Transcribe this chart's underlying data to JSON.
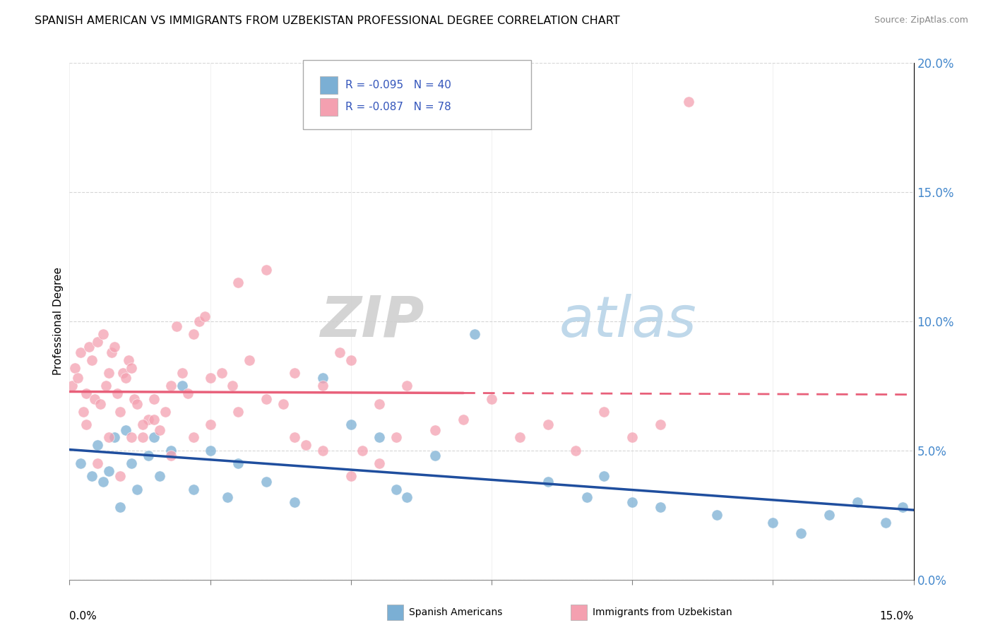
{
  "title": "SPANISH AMERICAN VS IMMIGRANTS FROM UZBEKISTAN PROFESSIONAL DEGREE CORRELATION CHART",
  "source": "Source: ZipAtlas.com",
  "ylabel": "Professional Degree",
  "legend_blue_r": "R = -0.095",
  "legend_blue_n": "N = 40",
  "legend_pink_r": "R = -0.087",
  "legend_pink_n": "N = 78",
  "legend_blue_label": "Spanish Americans",
  "legend_pink_label": "Immigrants from Uzbekistan",
  "xlim": [
    0.0,
    15.0
  ],
  "ylim": [
    0.0,
    20.0
  ],
  "yticks": [
    0.0,
    5.0,
    10.0,
    15.0,
    20.0
  ],
  "blue_color": "#7BAFD4",
  "pink_color": "#F4A0B0",
  "blue_line_color": "#1F4E9E",
  "pink_line_color": "#E8607A",
  "blue_scatter_x": [
    0.2,
    0.4,
    0.5,
    0.6,
    0.7,
    0.8,
    0.9,
    1.0,
    1.1,
    1.2,
    1.4,
    1.5,
    1.6,
    1.8,
    2.0,
    2.2,
    2.5,
    2.8,
    3.0,
    3.5,
    4.0,
    4.5,
    5.0,
    5.5,
    5.8,
    6.0,
    6.5,
    7.2,
    8.5,
    9.2,
    9.5,
    10.0,
    10.5,
    11.5,
    12.5,
    13.0,
    13.5,
    14.0,
    14.5,
    14.8
  ],
  "blue_scatter_y": [
    4.5,
    4.0,
    5.2,
    3.8,
    4.2,
    5.5,
    2.8,
    5.8,
    4.5,
    3.5,
    4.8,
    5.5,
    4.0,
    5.0,
    7.5,
    3.5,
    5.0,
    3.2,
    4.5,
    3.8,
    3.0,
    7.8,
    6.0,
    5.5,
    3.5,
    3.2,
    4.8,
    9.5,
    3.8,
    3.2,
    4.0,
    3.0,
    2.8,
    2.5,
    2.2,
    1.8,
    2.5,
    3.0,
    2.2,
    2.8
  ],
  "pink_scatter_x": [
    0.05,
    0.1,
    0.15,
    0.2,
    0.25,
    0.3,
    0.35,
    0.4,
    0.45,
    0.5,
    0.55,
    0.6,
    0.65,
    0.7,
    0.75,
    0.8,
    0.85,
    0.9,
    0.95,
    1.0,
    1.05,
    1.1,
    1.15,
    1.2,
    1.3,
    1.4,
    1.5,
    1.6,
    1.7,
    1.8,
    1.9,
    2.0,
    2.1,
    2.2,
    2.3,
    2.4,
    2.5,
    2.7,
    2.9,
    3.0,
    3.2,
    3.5,
    3.8,
    4.0,
    4.2,
    4.5,
    4.8,
    5.0,
    5.2,
    5.5,
    5.8,
    6.0,
    6.5,
    7.0,
    7.5,
    8.0,
    8.5,
    9.0,
    9.5,
    10.0,
    10.5,
    11.0,
    0.3,
    0.5,
    0.7,
    0.9,
    1.1,
    1.3,
    1.5,
    1.8,
    2.2,
    2.5,
    3.0,
    3.5,
    4.0,
    4.5,
    5.0,
    5.5
  ],
  "pink_scatter_y": [
    7.5,
    8.2,
    7.8,
    8.8,
    6.5,
    7.2,
    9.0,
    8.5,
    7.0,
    9.2,
    6.8,
    9.5,
    7.5,
    8.0,
    8.8,
    9.0,
    7.2,
    6.5,
    8.0,
    7.8,
    8.5,
    8.2,
    7.0,
    6.8,
    5.5,
    6.2,
    7.0,
    5.8,
    6.5,
    7.5,
    9.8,
    8.0,
    7.2,
    9.5,
    10.0,
    10.2,
    7.8,
    8.0,
    7.5,
    11.5,
    8.5,
    12.0,
    6.8,
    8.0,
    5.2,
    7.5,
    8.8,
    8.5,
    5.0,
    6.8,
    5.5,
    7.5,
    5.8,
    6.2,
    7.0,
    5.5,
    6.0,
    5.0,
    6.5,
    5.5,
    6.0,
    18.5,
    6.0,
    4.5,
    5.5,
    4.0,
    5.5,
    6.0,
    6.2,
    4.8,
    5.5,
    6.0,
    6.5,
    7.0,
    5.5,
    5.0,
    4.0,
    4.5
  ]
}
